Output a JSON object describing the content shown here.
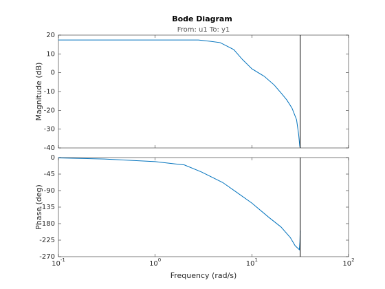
{
  "chart_data": [
    {
      "type": "line",
      "title": "Bode Diagram",
      "subtitle": "From: u1  To: y1",
      "ylabel": "Magnitude (dB)",
      "xscale": "log",
      "xlim": [
        0.1,
        100
      ],
      "ylim": [
        -40,
        20
      ],
      "yticks": [
        -40,
        -30,
        -20,
        -10,
        0,
        10,
        20
      ],
      "color": "#0072bd",
      "vline": {
        "x": 31.6,
        "color": "#000000"
      },
      "x": [
        0.1,
        0.5,
        1,
        2,
        2.8,
        3.7,
        4.7,
        6.5,
        8,
        10,
        13.5,
        17,
        20,
        23,
        26,
        29,
        30.5,
        31.3,
        31.6
      ],
      "values": [
        17.4,
        17.4,
        17.4,
        17.4,
        17.4,
        16.7,
        16,
        12.3,
        7,
        2.1,
        -2,
        -6.5,
        -10.7,
        -14.5,
        -18.8,
        -25,
        -33,
        -39,
        -40
      ]
    },
    {
      "type": "line",
      "ylabel": "Phase (deg)",
      "xlabel": "Frequency  (rad/s)",
      "xscale": "log",
      "xlim": [
        0.1,
        100
      ],
      "xticks": [
        {
          "value": 0.1,
          "label": "10",
          "exponent": "-1"
        },
        {
          "value": 1,
          "label": "10",
          "exponent": "0"
        },
        {
          "value": 10,
          "label": "10",
          "exponent": "1"
        },
        {
          "value": 100,
          "label": "10",
          "exponent": "2"
        }
      ],
      "ylim": [
        -270,
        0
      ],
      "yticks": [
        -270,
        -225,
        -180,
        -135,
        -90,
        -45,
        0
      ],
      "color": "#0072bd",
      "vline": {
        "x": 31.6,
        "color": "#000000"
      },
      "x": [
        0.1,
        0.3,
        1,
        2,
        3,
        5,
        7,
        10,
        15,
        20,
        25,
        28,
        31,
        31.4,
        31.6
      ],
      "values": [
        -1,
        -4,
        -11,
        -20,
        -39,
        -68,
        -95,
        -124,
        -163,
        -189,
        -218,
        -240,
        -251,
        -230,
        -199
      ]
    }
  ]
}
